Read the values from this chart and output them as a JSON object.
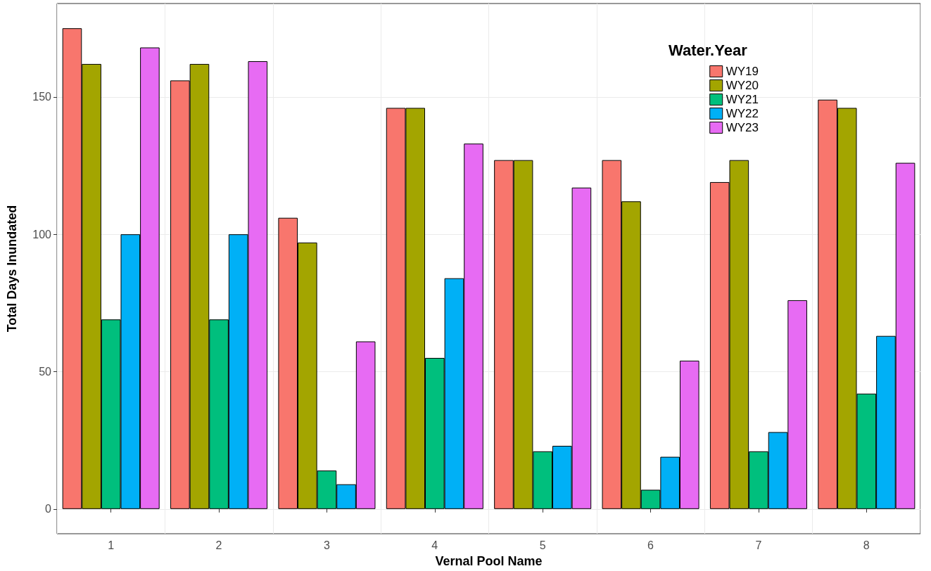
{
  "chart_data": {
    "type": "bar",
    "xlabel": "Vernal Pool Name",
    "ylabel": "Total Days Inundated",
    "legend_title": "Water.Year",
    "categories": [
      "1",
      "2",
      "3",
      "4",
      "5",
      "6",
      "7",
      "8"
    ],
    "series": [
      {
        "name": "WY19",
        "color": "#f8766d",
        "values": [
          175,
          156,
          106,
          146,
          127,
          127,
          119,
          149
        ]
      },
      {
        "name": "WY20",
        "color": "#a3a500",
        "values": [
          162,
          162,
          97,
          146,
          127,
          112,
          127,
          146
        ]
      },
      {
        "name": "WY21",
        "color": "#00bf7d",
        "values": [
          69,
          69,
          14,
          55,
          21,
          7,
          21,
          42
        ]
      },
      {
        "name": "WY22",
        "color": "#00b0f6",
        "values": [
          100,
          100,
          9,
          84,
          23,
          19,
          28,
          63
        ]
      },
      {
        "name": "WY23",
        "color": "#e76bf3",
        "values": [
          168,
          163,
          61,
          133,
          117,
          54,
          76,
          126
        ]
      }
    ],
    "ylim": [
      -9,
      184
    ],
    "yticks": [
      0,
      50,
      100,
      150
    ],
    "grid": true,
    "legend": "top right"
  }
}
